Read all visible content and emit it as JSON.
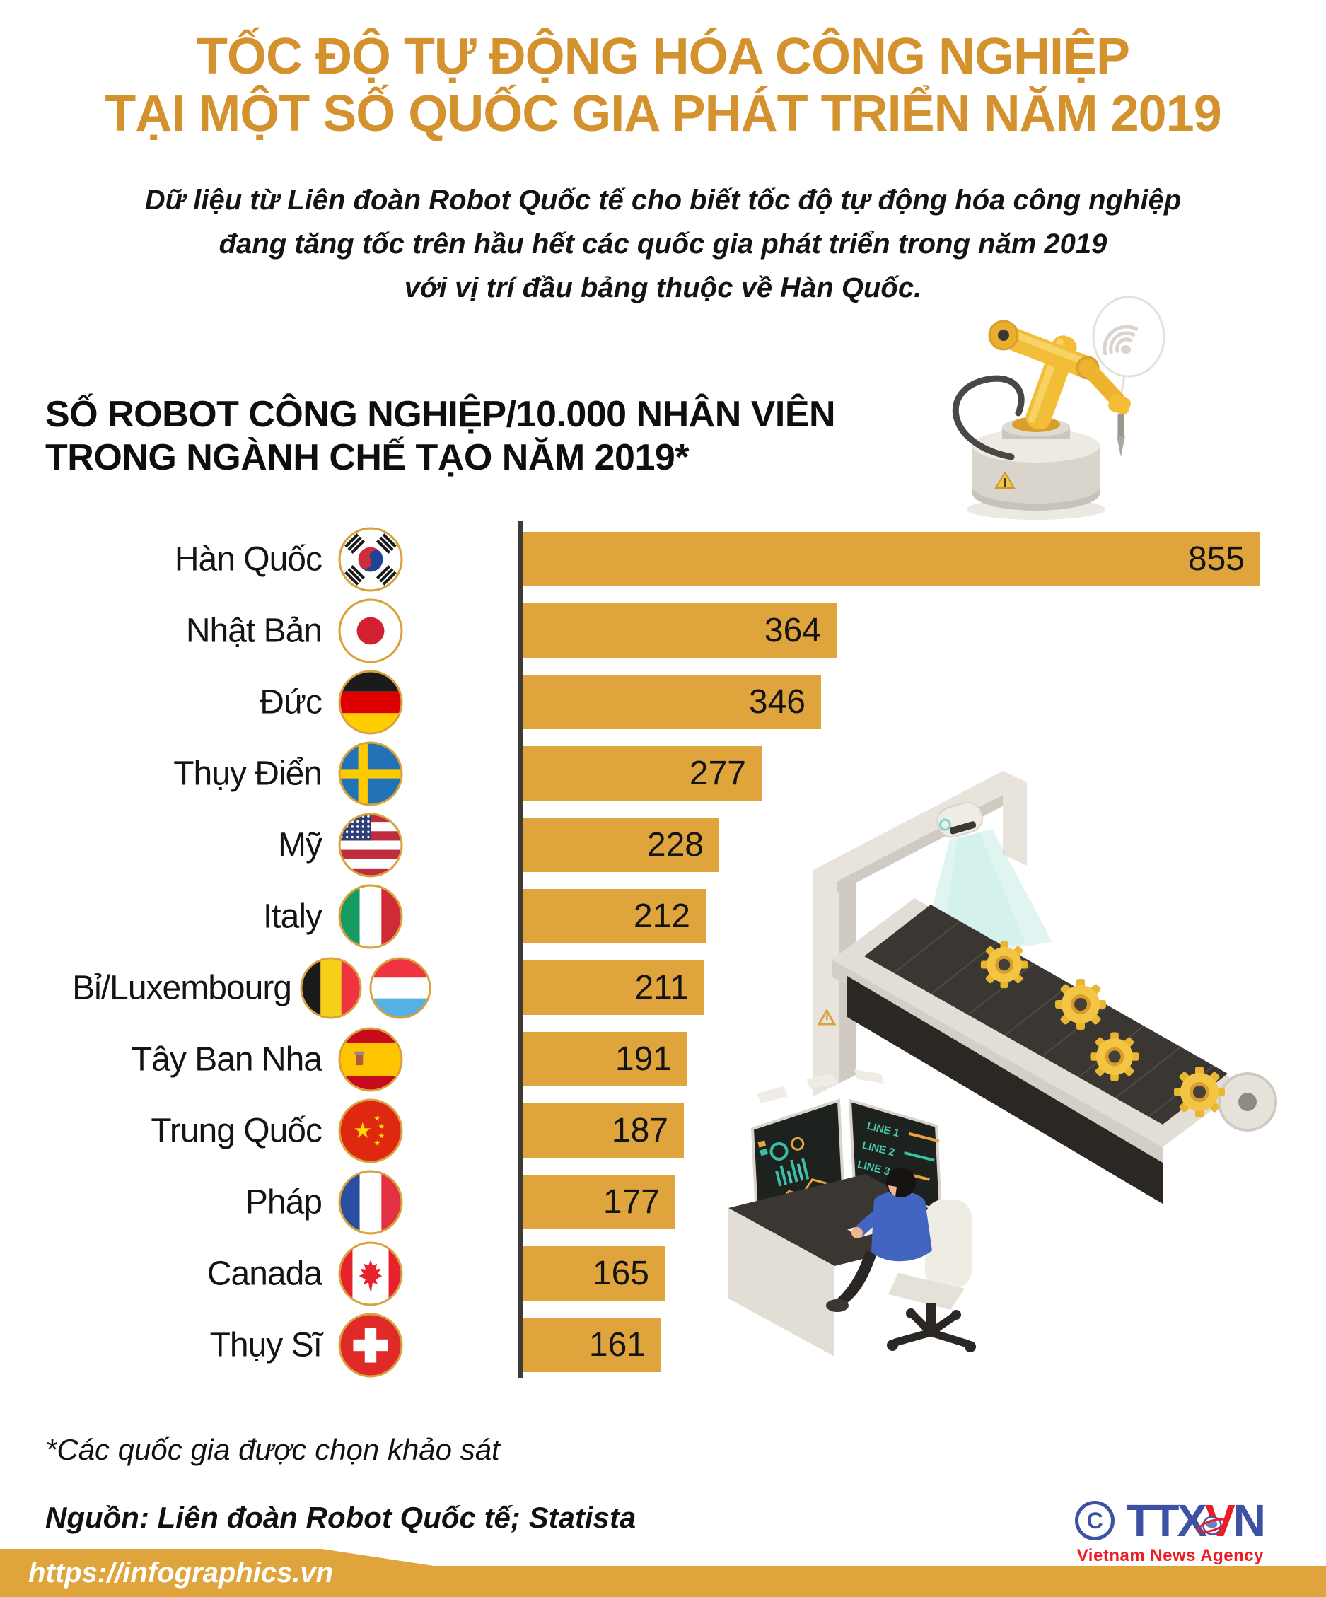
{
  "title": {
    "line1": "TỐC ĐỘ TỰ ĐỘNG HÓA CÔNG NGHIỆP",
    "line2": "TẠI MỘT SỐ QUỐC GIA PHÁT TRIỂN NĂM 2019"
  },
  "subtitle": {
    "line1": "Dữ liệu từ Liên đoàn Robot Quốc tế cho biết tốc độ tự động hóa công nghiệp",
    "line2": "đang tăng tốc trên hầu hết các quốc gia phát triển trong năm 2019",
    "line3": "với vị trí đầu bảng thuộc về Hàn Quốc."
  },
  "section_header": {
    "line1": "SỐ ROBOT CÔNG NGHIỆP/10.000 NHÂN VIÊN",
    "line2": "TRONG NGÀNH CHẾ TẠO NĂM 2019*"
  },
  "chart_data": {
    "type": "bar",
    "orientation": "horizontal",
    "title": "SỐ ROBOT CÔNG NGHIỆP/10.000 NHÂN VIÊN TRONG NGÀNH CHẾ TẠO NĂM 2019*",
    "categories": [
      "Hàn Quốc",
      "Nhật Bản",
      "Đức",
      "Thụy Điển",
      "Mỹ",
      "Italy",
      "Bỉ/Luxembourg",
      "Tây Ban Nha",
      "Trung Quốc",
      "Pháp",
      "Canada",
      "Thụy Sĩ"
    ],
    "values": [
      855,
      364,
      346,
      277,
      228,
      212,
      211,
      191,
      187,
      177,
      165,
      161
    ],
    "flags": [
      [
        "kr"
      ],
      [
        "jp"
      ],
      [
        "de"
      ],
      [
        "se"
      ],
      [
        "us"
      ],
      [
        "it"
      ],
      [
        "be",
        "lu"
      ],
      [
        "es"
      ],
      [
        "cn"
      ],
      [
        "fr"
      ],
      [
        "ca"
      ],
      [
        "ch"
      ]
    ],
    "xlim": [
      0,
      855
    ],
    "grid": false,
    "legend": "none",
    "value_labels": "inside-end"
  },
  "footnote": "*Các quốc gia được chọn khảo sát",
  "source": "Nguồn: Liên đoàn Robot Quốc tế; Statista",
  "footer_url": "https://infographics.vn",
  "logo": {
    "copyright_symbol": "C",
    "text_blue_1": "TTX",
    "text_red": "V",
    "text_blue_2": "N",
    "tagline": "Vietnam News Agency"
  },
  "illustrations": {
    "monitor_labels": [
      "LINE 1",
      "LINE 2",
      "LINE 3"
    ]
  },
  "colors": {
    "accent_orange": "#DFA53C",
    "title_orange": "#D4922F",
    "text_black": "#151515",
    "axis_dark": "#3E3A36",
    "flag_ring_gold": "#D8A23C",
    "logo_blue": "#3D52A3",
    "logo_red": "#EC1C24",
    "footer_text_white": "#FFFFFF"
  }
}
